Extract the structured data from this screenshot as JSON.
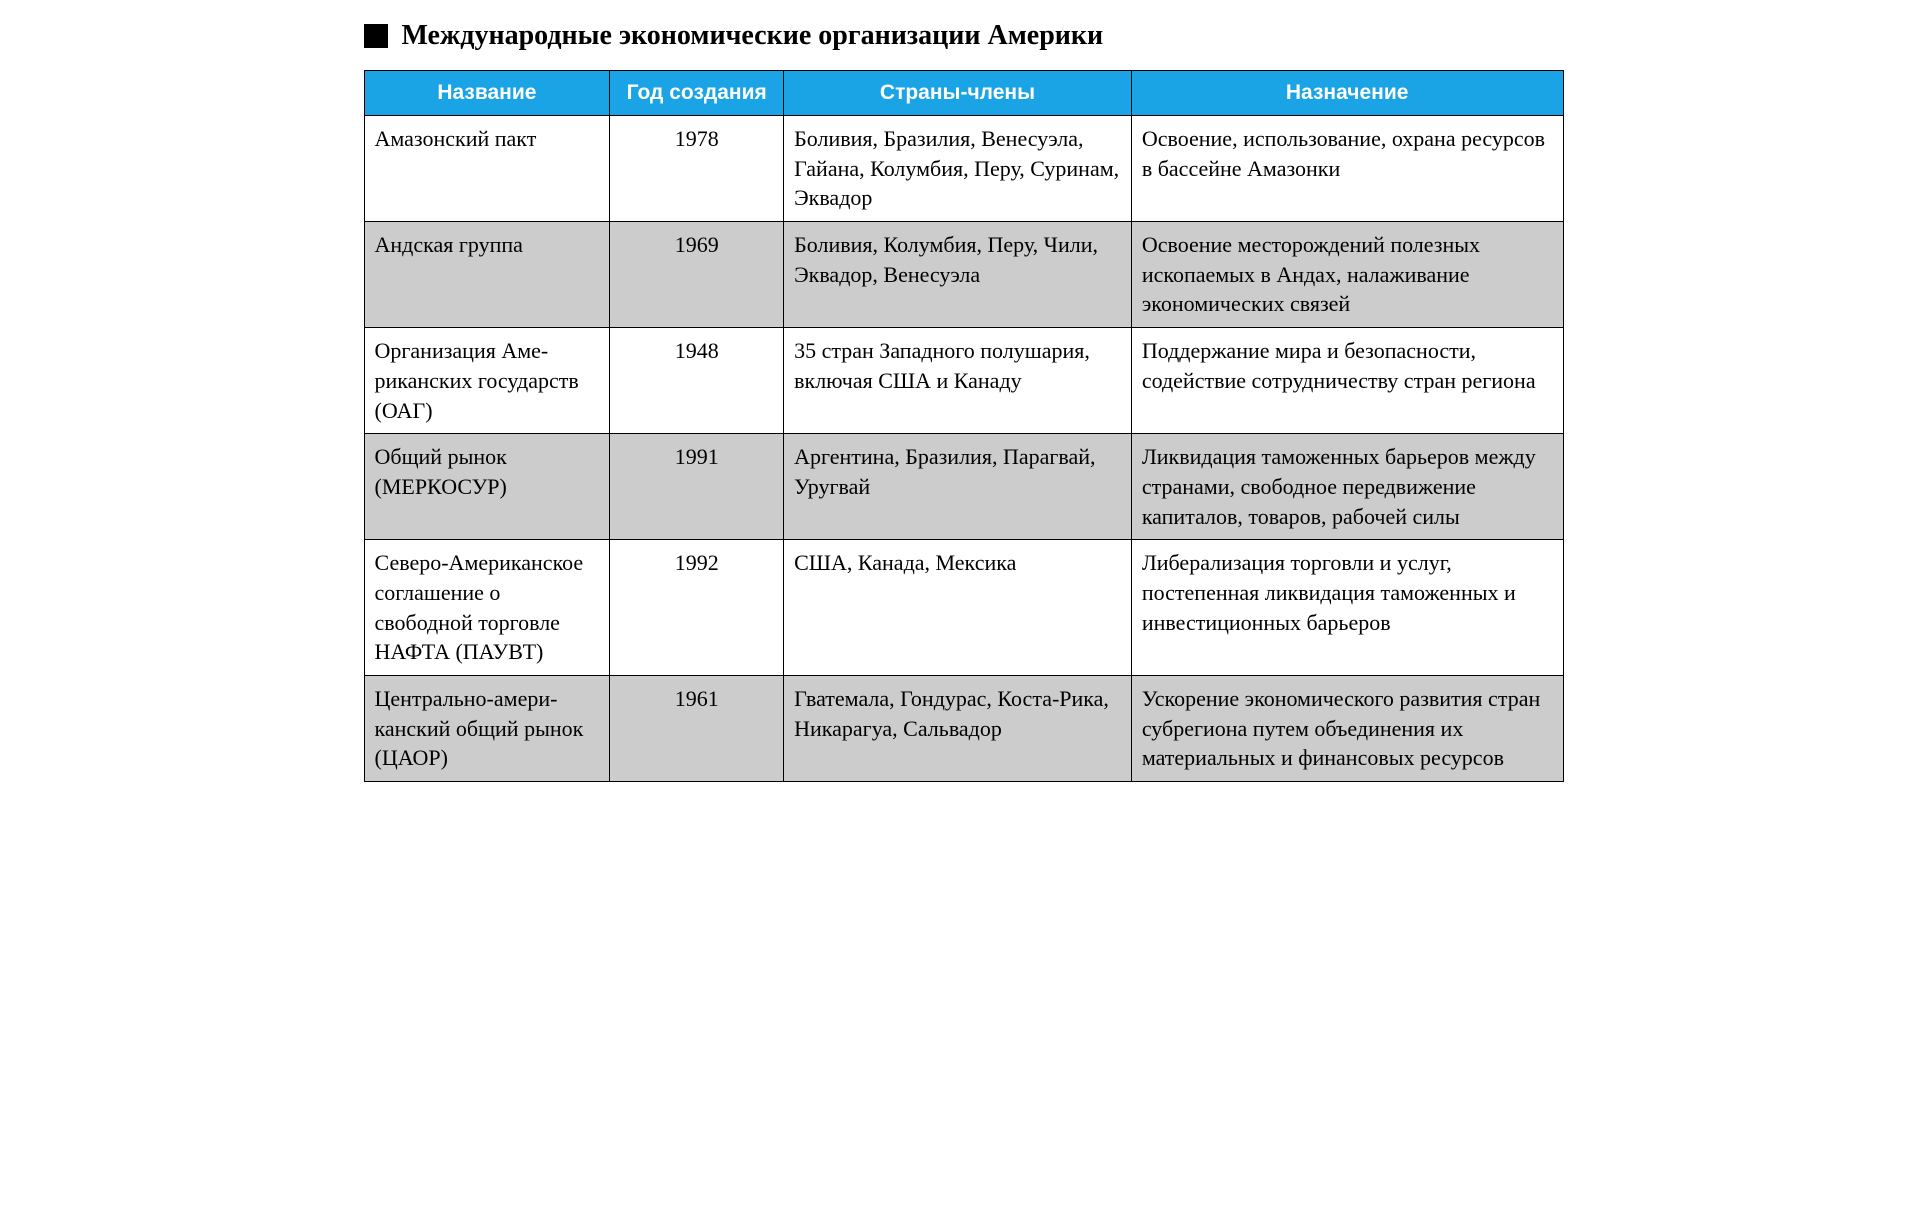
{
  "title": "Международные экономические организации Америки",
  "colors": {
    "header_bg": "#1aa4e6",
    "header_text": "#ffffff",
    "row_alt_bg": "#cccccc",
    "row_bg": "#ffffff",
    "border": "#000000",
    "marker": "#000000"
  },
  "table": {
    "columns": [
      {
        "key": "name",
        "label": "Название",
        "width": "20.5%"
      },
      {
        "key": "year",
        "label": "Год создания",
        "width": "14.5%"
      },
      {
        "key": "members",
        "label": "Страны-члены",
        "width": "29%"
      },
      {
        "key": "purpose",
        "label": "Назначение",
        "width": "36%"
      }
    ],
    "rows": [
      {
        "name": "Амазонский пакт",
        "year": "1978",
        "members": "Боливия, Бразилия, Вене­суэла, Гайана, Колумбия, Перу, Суринам, Эквадор",
        "purpose": "Освоение, использование, ох­рана ресурсов в бассейне Ама­зонки"
      },
      {
        "name": "Андская группа",
        "year": "1969",
        "members": "Боливия, Колумбия, Перу, Чили, Эквадор, Венесуэла",
        "purpose": "Освоение месторождений полез­ных ископаемых в Андах, нала­живание экономических связей"
      },
      {
        "name": "Организация Аме­риканских госу­дарств (ОАГ)",
        "year": "1948",
        "members": "35 стран Западного по­лушария, включая США и Канаду",
        "purpose": "Поддержание мира и безопас­ности, содействие сотрудничест­ву стран региона"
      },
      {
        "name": "Общий рынок (МЕРКОСУР)",
        "year": "1991",
        "members": "Аргентина, Бразилия, Па­рагвай, Уругвай",
        "purpose": "Ликвидация таможенных барь­еров между странами, свободное передвижение капиталов, това­ров, рабочей силы"
      },
      {
        "name": "Северо-Американ­ское соглашение о свободной торгов­ле НАФТА (ПАУВТ)",
        "year": "1992",
        "members": "США, Канада, Мексика",
        "purpose": "Либерализация торговли и услуг, постепенная ликвида­ция таможенных и инвестици­онных барьеров"
      },
      {
        "name": "Центрально-амери­канский общий ры­нок (ЦАОР)",
        "year": "1961",
        "members": "Гватемала, Гондурас, Кос­та-Рика, Никарагуа, Саль­вадор",
        "purpose": "Ускорение экономического раз­вития стран субрегиона путем объединения их материальных и финансовых ресурсов"
      }
    ]
  }
}
